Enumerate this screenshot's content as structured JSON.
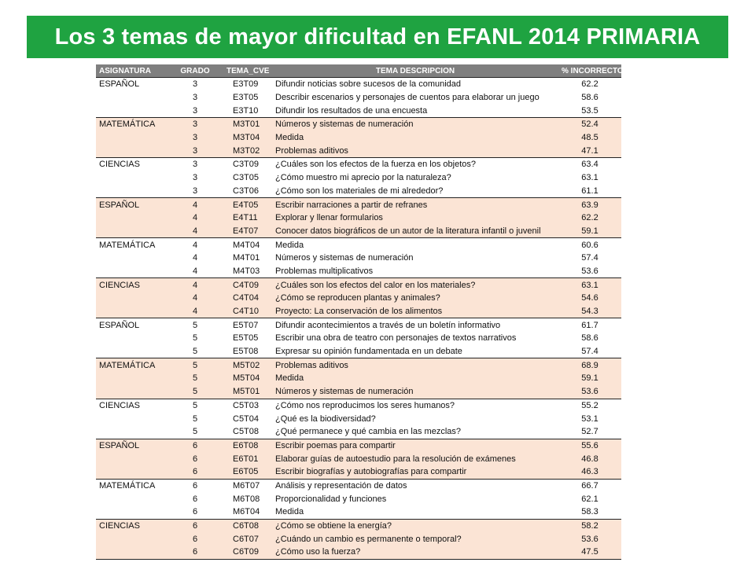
{
  "title": "Los 3 temas de mayor dificultad en EFANL 2014 PRIMARIA",
  "colors": {
    "banner": "#1fa341",
    "header": "#7f7f7f",
    "row_highlight": "#fbe4d5"
  },
  "table": {
    "headers": {
      "asignatura": "ASIGNATURA",
      "grado": "GRADO",
      "tema_cve": "TEMA_CVE",
      "tema_descripcion": "TEMA DESCRIPCION",
      "incorrecto": "% INCORRECTO"
    },
    "groups": [
      {
        "asignatura": "ESPAÑOL",
        "highlight": false,
        "rows": [
          {
            "grado": "3",
            "cve": "E3T09",
            "desc": "Difundir noticias sobre sucesos de la comunidad",
            "pct": "62.2"
          },
          {
            "grado": "3",
            "cve": "E3T05",
            "desc": "Describir escenarios y personajes de cuentos para elaborar  un juego",
            "pct": "58.6"
          },
          {
            "grado": "3",
            "cve": "E3T10",
            "desc": "Difundir los resultados de una encuesta",
            "pct": "53.5"
          }
        ]
      },
      {
        "asignatura": "MATEMÁTICA",
        "highlight": true,
        "rows": [
          {
            "grado": "3",
            "cve": "M3T01",
            "desc": "Números y sistemas de numeración",
            "pct": "52.4"
          },
          {
            "grado": "3",
            "cve": "M3T04",
            "desc": "Medida",
            "pct": "48.5"
          },
          {
            "grado": "3",
            "cve": "M3T02",
            "desc": "Problemas aditivos",
            "pct": "47.1"
          }
        ]
      },
      {
        "asignatura": "CIENCIAS",
        "highlight": false,
        "rows": [
          {
            "grado": "3",
            "cve": "C3T09",
            "desc": "¿Cuáles son los efectos de la fuerza en los objetos?",
            "pct": "63.4"
          },
          {
            "grado": "3",
            "cve": "C3T05",
            "desc": "¿Cómo muestro mi aprecio  por la naturaleza?",
            "pct": "63.1"
          },
          {
            "grado": "3",
            "cve": "C3T06",
            "desc": "¿Cómo son los materiales de mi alrededor?",
            "pct": "61.1"
          }
        ]
      },
      {
        "asignatura": "ESPAÑOL",
        "highlight": true,
        "rows": [
          {
            "grado": "4",
            "cve": "E4T05",
            "desc": "Escribir narraciones a partir de refranes",
            "pct": "63.9"
          },
          {
            "grado": "4",
            "cve": "E4T11",
            "desc": "Explorar y llenar formularios",
            "pct": "62.2"
          },
          {
            "grado": "4",
            "cve": "E4T07",
            "desc": "Conocer datos biográficos de un autor de la literatura infantil o juvenil",
            "pct": "59.1"
          }
        ]
      },
      {
        "asignatura": "MATEMÁTICA",
        "highlight": false,
        "rows": [
          {
            "grado": "4",
            "cve": "M4T04",
            "desc": "Medida",
            "pct": "60.6"
          },
          {
            "grado": "4",
            "cve": "M4T01",
            "desc": "Números y sistemas de numeración",
            "pct": "57.4"
          },
          {
            "grado": "4",
            "cve": "M4T03",
            "desc": "Problemas multiplicativos",
            "pct": "53.6"
          }
        ]
      },
      {
        "asignatura": "CIENCIAS",
        "highlight": true,
        "rows": [
          {
            "grado": "4",
            "cve": "C4T09",
            "desc": "¿Cuáles son los efectos del calor en los materiales?",
            "pct": "63.1"
          },
          {
            "grado": "4",
            "cve": "C4T04",
            "desc": "¿Cómo se reproducen plantas y animales?",
            "pct": "54.6"
          },
          {
            "grado": "4",
            "cve": "C4T10",
            "desc": "Proyecto: La conservación de los alimentos",
            "pct": "54.3"
          }
        ]
      },
      {
        "asignatura": "ESPAÑOL",
        "highlight": false,
        "rows": [
          {
            "grado": "5",
            "cve": "E5T07",
            "desc": "Difundir acontecimientos a través de un boletín informativo",
            "pct": "61.7"
          },
          {
            "grado": "5",
            "cve": "E5T05",
            "desc": "Escribir una obra de teatro con personajes de textos narrativos",
            "pct": "58.6"
          },
          {
            "grado": "5",
            "cve": "E5T08",
            "desc": "Expresar su opinión fundamentada en un debate",
            "pct": "57.4"
          }
        ]
      },
      {
        "asignatura": "MATEMÁTICA",
        "highlight": true,
        "rows": [
          {
            "grado": "5",
            "cve": "M5T02",
            "desc": "Problemas aditivos",
            "pct": "68.9"
          },
          {
            "grado": "5",
            "cve": "M5T04",
            "desc": "Medida",
            "pct": "59.1"
          },
          {
            "grado": "5",
            "cve": "M5T01",
            "desc": "Números y sistemas de numeración",
            "pct": "53.6"
          }
        ]
      },
      {
        "asignatura": "CIENCIAS",
        "highlight": false,
        "rows": [
          {
            "grado": "5",
            "cve": "C5T03",
            "desc": "¿Cómo nos reproducimos los seres humanos?",
            "pct": "55.2"
          },
          {
            "grado": "5",
            "cve": "C5T04",
            "desc": "¿Qué es la biodiversidad?",
            "pct": "53.1"
          },
          {
            "grado": "5",
            "cve": "C5T08",
            "desc": "¿Qué permanece y qué cambia en las mezclas?",
            "pct": "52.7"
          }
        ]
      },
      {
        "asignatura": "ESPAÑOL",
        "highlight": true,
        "rows": [
          {
            "grado": "6",
            "cve": "E6T08",
            "desc": "Escribir poemas para compartir",
            "pct": "55.6"
          },
          {
            "grado": "6",
            "cve": "E6T01",
            "desc": "Elaborar guías de autoestudio para la resolución de exámenes",
            "pct": "46.8"
          },
          {
            "grado": "6",
            "cve": "E6T05",
            "desc": "Escribir biografías y autobiografías para  compartir",
            "pct": "46.3"
          }
        ]
      },
      {
        "asignatura": "MATEMÁTICA",
        "highlight": false,
        "rows": [
          {
            "grado": "6",
            "cve": "M6T07",
            "desc": "Análisis y representación de datos",
            "pct": "66.7"
          },
          {
            "grado": "6",
            "cve": "M6T08",
            "desc": "Proporcionalidad y funciones",
            "pct": "62.1"
          },
          {
            "grado": "6",
            "cve": "M6T04",
            "desc": "Medida",
            "pct": "58.3"
          }
        ]
      },
      {
        "asignatura": "CIENCIAS",
        "highlight": true,
        "rows": [
          {
            "grado": "6",
            "cve": "C6T08",
            "desc": "¿Cómo se obtiene la energía?",
            "pct": "58.2"
          },
          {
            "grado": "6",
            "cve": "C6T07",
            "desc": "¿Cuándo un cambio es permanente o temporal?",
            "pct": "53.6"
          },
          {
            "grado": "6",
            "cve": "C6T09",
            "desc": "¿Cómo uso la fuerza?",
            "pct": "47.5"
          }
        ]
      }
    ]
  }
}
